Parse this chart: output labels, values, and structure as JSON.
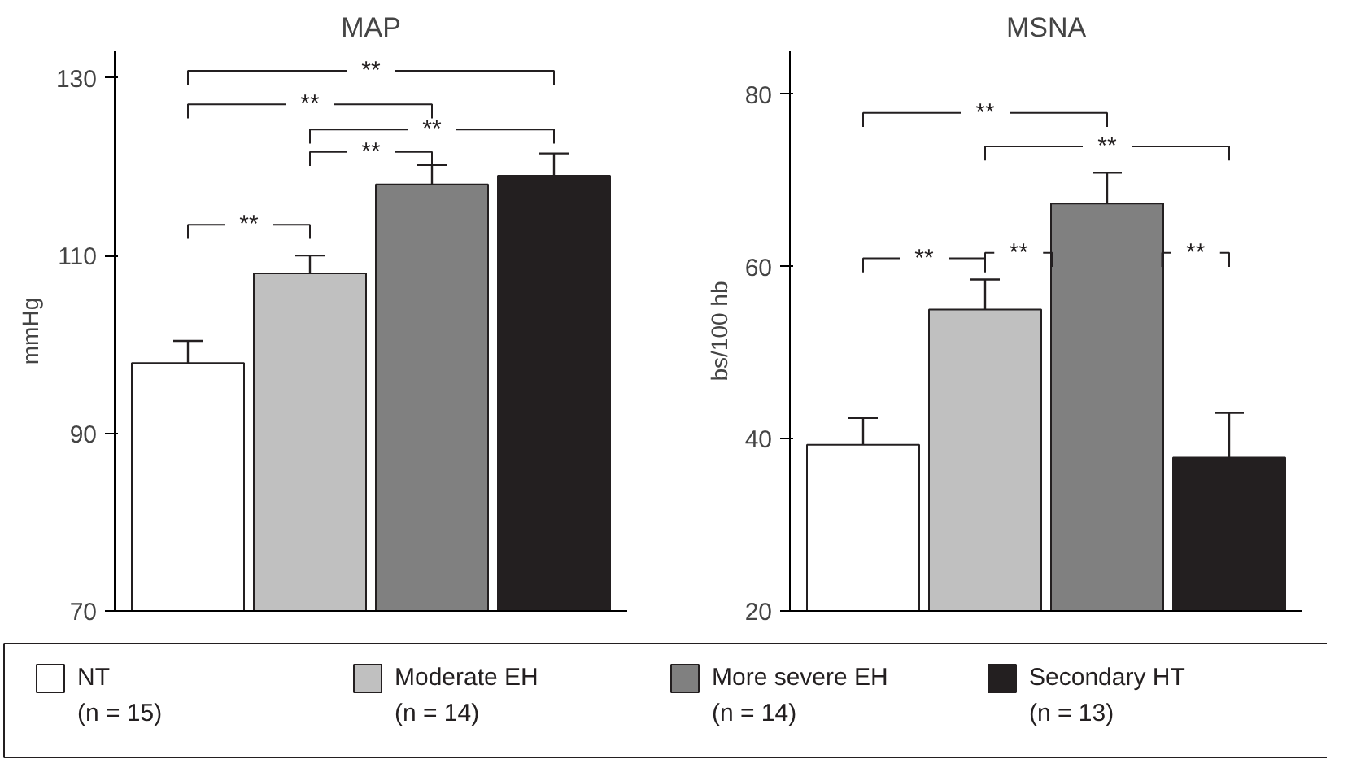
{
  "chart_data": [
    {
      "type": "bar",
      "title": "MAP",
      "ylabel": "mmHg",
      "categories": [
        null
      ],
      "ylim": [
        70,
        133
      ],
      "yticks": [
        70,
        90,
        110,
        130
      ],
      "tick_labels": "y",
      "grid": false,
      "legend": "bottom",
      "series": [
        {
          "name": "NT\n(n = 15)",
          "color": "#ffffff",
          "values": [
            97.9
          ],
          "errors": [
            [
              97.9,
              100.4
            ]
          ]
        },
        {
          "name": "Moderate  EH\n(n = 14)",
          "color": "#c0c0c0",
          "values": [
            108
          ],
          "errors": [
            [
              108,
              110
            ]
          ]
        },
        {
          "name": "More severe EH\n(n = 14)",
          "color": "#808080",
          "values": [
            118
          ],
          "errors": [
            [
              118,
              120.2
            ]
          ]
        },
        {
          "name": "Secondary HT\n(n = 13)",
          "color": "#231f20",
          "values": [
            119
          ],
          "errors": [
            [
              119,
              121.5
            ]
          ]
        }
      ],
      "annotations": [
        "**",
        "**",
        "**",
        "**",
        "**"
      ]
    },
    {
      "type": "bar",
      "title": "MSNA",
      "ylabel": "bs/100 hb",
      "categories": [
        null
      ],
      "ylim": [
        20,
        85
      ],
      "yticks": [
        20,
        40,
        60,
        80
      ],
      "tick_labels": "y",
      "grid": false,
      "series": [
        {
          "color": "#ffffff",
          "values": [
            39.3
          ],
          "errors": [
            [
              39.3,
              42.4
            ]
          ]
        },
        {
          "color": "#c0c0c0",
          "values": [
            55
          ],
          "errors": [
            [
              55,
              58.5
            ]
          ]
        },
        {
          "color": "#808080",
          "values": [
            67.3
          ],
          "errors": [
            [
              67.3,
              70.9
            ]
          ]
        },
        {
          "color": "#231f20",
          "values": [
            37.8
          ],
          "errors": [
            [
              37.8,
              43
            ]
          ]
        }
      ],
      "annotations": [
        "**",
        "**",
        "**",
        "**",
        "**"
      ]
    }
  ]
}
